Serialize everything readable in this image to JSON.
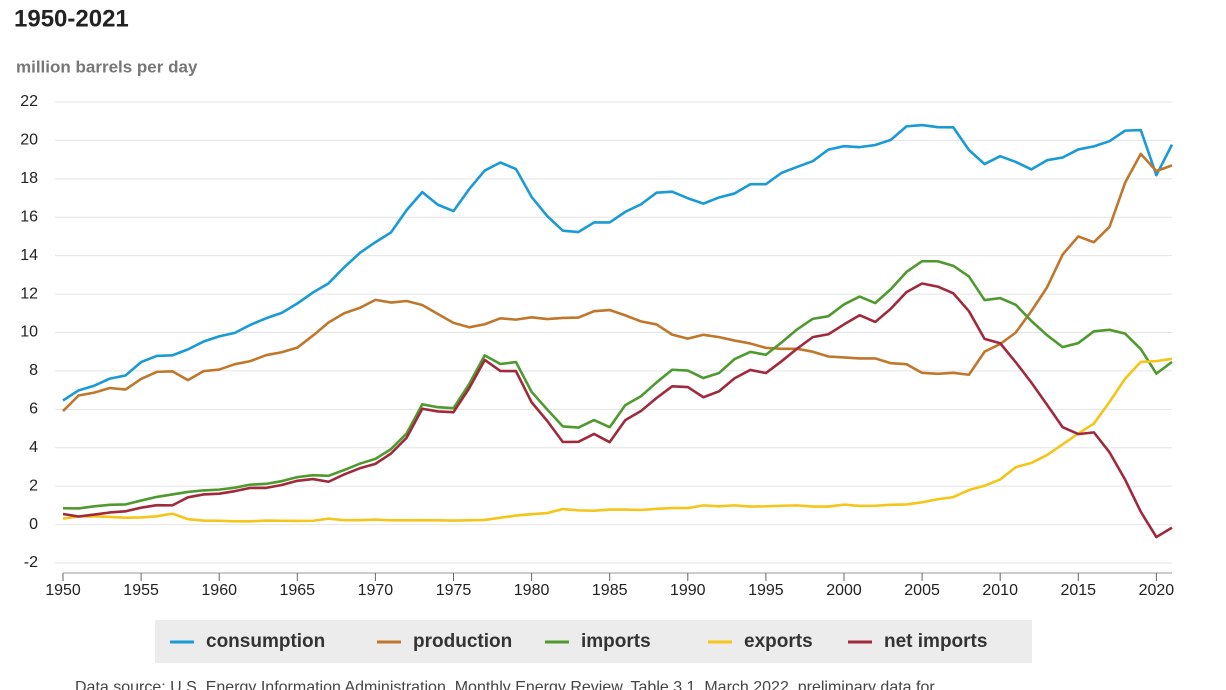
{
  "chart_data": {
    "type": "line",
    "title": "1950-2021",
    "y_label": "million barrels per day",
    "source": "Data source: U.S. Energy Information Administration, Monthly Energy Review, Table 3.1, March 2022, preliminary data for",
    "x": [
      1950,
      1951,
      1952,
      1953,
      1954,
      1955,
      1956,
      1957,
      1958,
      1959,
      1960,
      1961,
      1962,
      1963,
      1964,
      1965,
      1966,
      1967,
      1968,
      1969,
      1970,
      1971,
      1972,
      1973,
      1974,
      1975,
      1976,
      1977,
      1978,
      1979,
      1980,
      1981,
      1982,
      1983,
      1984,
      1985,
      1986,
      1987,
      1988,
      1989,
      1990,
      1991,
      1992,
      1993,
      1994,
      1995,
      1996,
      1997,
      1998,
      1999,
      2000,
      2001,
      2002,
      2003,
      2004,
      2005,
      2006,
      2007,
      2008,
      2009,
      2010,
      2011,
      2012,
      2013,
      2014,
      2015,
      2016,
      2017,
      2018,
      2019,
      2020,
      2021
    ],
    "xlim": [
      1950,
      2021
    ],
    "xticks": [
      1950,
      1955,
      1960,
      1965,
      1970,
      1975,
      1980,
      1985,
      1990,
      1995,
      2000,
      2005,
      2010,
      2015,
      2020
    ],
    "ylim": [
      -2,
      22
    ],
    "yticks": [
      -2,
      0,
      2,
      4,
      6,
      8,
      10,
      12,
      14,
      16,
      18,
      20,
      22
    ],
    "grid": true,
    "legend": "bottom",
    "series": [
      {
        "name": "consumption",
        "color": "#1a9ad6",
        "values": [
          6.46,
          6.99,
          7.23,
          7.6,
          7.76,
          8.46,
          8.78,
          8.81,
          9.12,
          9.53,
          9.8,
          9.98,
          10.4,
          10.74,
          11.02,
          11.51,
          12.08,
          12.56,
          13.39,
          14.14,
          14.7,
          15.21,
          16.37,
          17.31,
          16.65,
          16.32,
          17.46,
          18.43,
          18.85,
          18.51,
          17.06,
          16.06,
          15.3,
          15.23,
          15.73,
          15.73,
          16.28,
          16.67,
          17.28,
          17.33,
          16.99,
          16.71,
          17.03,
          17.24,
          17.72,
          17.72,
          18.31,
          18.62,
          18.92,
          19.52,
          19.7,
          19.65,
          19.76,
          20.03,
          20.73,
          20.8,
          20.69,
          20.68,
          19.5,
          18.77,
          19.18,
          18.88,
          18.49,
          18.97,
          19.11,
          19.53,
          19.69,
          19.96,
          20.51,
          20.54,
          18.19,
          19.78
        ]
      },
      {
        "name": "production",
        "color": "#c0772b",
        "values": [
          5.91,
          6.72,
          6.87,
          7.11,
          7.03,
          7.58,
          7.95,
          7.98,
          7.52,
          7.99,
          8.07,
          8.35,
          8.51,
          8.82,
          8.97,
          9.21,
          9.84,
          10.52,
          11.0,
          11.28,
          11.7,
          11.56,
          11.64,
          11.43,
          10.96,
          10.5,
          10.27,
          10.43,
          10.74,
          10.67,
          10.79,
          10.7,
          10.76,
          10.78,
          11.11,
          11.17,
          10.89,
          10.58,
          10.42,
          9.89,
          9.68,
          9.88,
          9.76,
          9.58,
          9.43,
          9.2,
          9.15,
          9.15,
          9.0,
          8.75,
          8.7,
          8.65,
          8.65,
          8.4,
          8.35,
          7.9,
          7.85,
          7.9,
          7.8,
          9.0,
          9.4,
          10.0,
          11.12,
          12.35,
          14.06,
          15.0,
          14.7,
          15.5,
          17.8,
          19.3,
          18.4,
          18.7
        ]
      },
      {
        "name": "imports",
        "color": "#4e9a2e",
        "values": [
          0.85,
          0.84,
          0.95,
          1.03,
          1.05,
          1.25,
          1.44,
          1.57,
          1.7,
          1.78,
          1.82,
          1.92,
          2.08,
          2.12,
          2.26,
          2.47,
          2.57,
          2.54,
          2.84,
          3.17,
          3.42,
          3.93,
          4.74,
          6.26,
          6.11,
          6.06,
          7.31,
          8.81,
          8.36,
          8.46,
          6.91,
          5.99,
          5.11,
          5.05,
          5.44,
          5.07,
          6.22,
          6.68,
          7.4,
          8.06,
          8.02,
          7.63,
          7.89,
          8.62,
          8.99,
          8.84,
          9.48,
          10.16,
          10.71,
          10.85,
          11.46,
          11.87,
          11.53,
          12.26,
          13.15,
          13.71,
          13.71,
          13.47,
          12.92,
          11.69,
          11.79,
          11.44,
          10.6,
          9.86,
          9.24,
          9.45,
          10.06,
          10.14,
          9.94,
          9.14,
          7.86,
          8.47
        ]
      },
      {
        "name": "exports",
        "color": "#f5c518",
        "values": [
          0.31,
          0.42,
          0.43,
          0.4,
          0.36,
          0.37,
          0.43,
          0.57,
          0.28,
          0.21,
          0.2,
          0.17,
          0.17,
          0.21,
          0.2,
          0.19,
          0.2,
          0.31,
          0.23,
          0.23,
          0.26,
          0.22,
          0.22,
          0.23,
          0.22,
          0.21,
          0.22,
          0.24,
          0.36,
          0.47,
          0.54,
          0.6,
          0.81,
          0.74,
          0.72,
          0.78,
          0.78,
          0.76,
          0.82,
          0.86,
          0.86,
          1.0,
          0.95,
          1.0,
          0.94,
          0.95,
          0.98,
          1.0,
          0.94,
          0.94,
          1.04,
          0.97,
          0.98,
          1.03,
          1.05,
          1.16,
          1.32,
          1.43,
          1.8,
          2.02,
          2.35,
          2.99,
          3.21,
          3.62,
          4.18,
          4.74,
          5.26,
          6.38,
          7.6,
          8.47,
          8.51,
          8.63
        ]
      },
      {
        "name": "net imports",
        "color": "#a0293c",
        "values": [
          0.55,
          0.42,
          0.52,
          0.63,
          0.69,
          0.88,
          1.01,
          1.0,
          1.42,
          1.57,
          1.61,
          1.74,
          1.91,
          1.91,
          2.06,
          2.28,
          2.37,
          2.23,
          2.61,
          2.93,
          3.16,
          3.7,
          4.52,
          6.03,
          5.89,
          5.85,
          7.09,
          8.57,
          8.0,
          7.99,
          6.37,
          5.4,
          4.3,
          4.31,
          4.72,
          4.29,
          5.44,
          5.91,
          6.59,
          7.2,
          7.16,
          6.63,
          6.94,
          7.62,
          8.05,
          7.89,
          8.5,
          9.16,
          9.76,
          9.91,
          10.42,
          10.9,
          10.55,
          11.24,
          12.1,
          12.55,
          12.39,
          12.04,
          11.11,
          9.67,
          9.44,
          8.45,
          7.39,
          6.24,
          5.07,
          4.71,
          4.8,
          3.76,
          2.34,
          0.67,
          -0.65,
          -0.16
        ]
      }
    ]
  }
}
